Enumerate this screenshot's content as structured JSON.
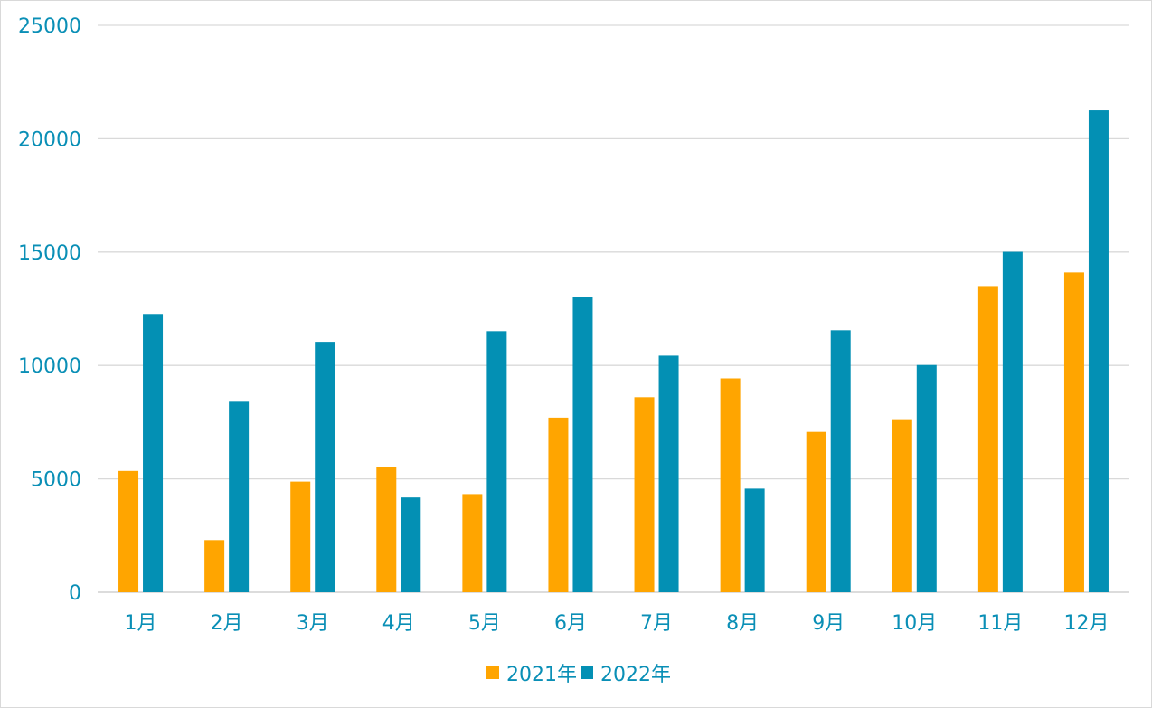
{
  "chart_data": {
    "type": "bar",
    "categories": [
      "1月",
      "2月",
      "3月",
      "4月",
      "5月",
      "6月",
      "7月",
      "8月",
      "9月",
      "10月",
      "11月",
      "12月"
    ],
    "series": [
      {
        "name": "2021年",
        "color": "#ffa500",
        "values": [
          5350,
          2300,
          4880,
          5520,
          4330,
          7700,
          8600,
          9430,
          7070,
          7630,
          13500,
          14100
        ]
      },
      {
        "name": "2022年",
        "color": "#0390b4",
        "values": [
          12270,
          8400,
          11040,
          4180,
          11510,
          13020,
          10430,
          4570,
          11550,
          10020,
          15010,
          21250
        ]
      }
    ],
    "ylim": [
      0,
      25000
    ],
    "yticks": [
      0,
      5000,
      10000,
      15000,
      20000,
      25000
    ],
    "grid": true,
    "legend": "bottom-center",
    "title": "",
    "xlabel": "",
    "ylabel": ""
  }
}
